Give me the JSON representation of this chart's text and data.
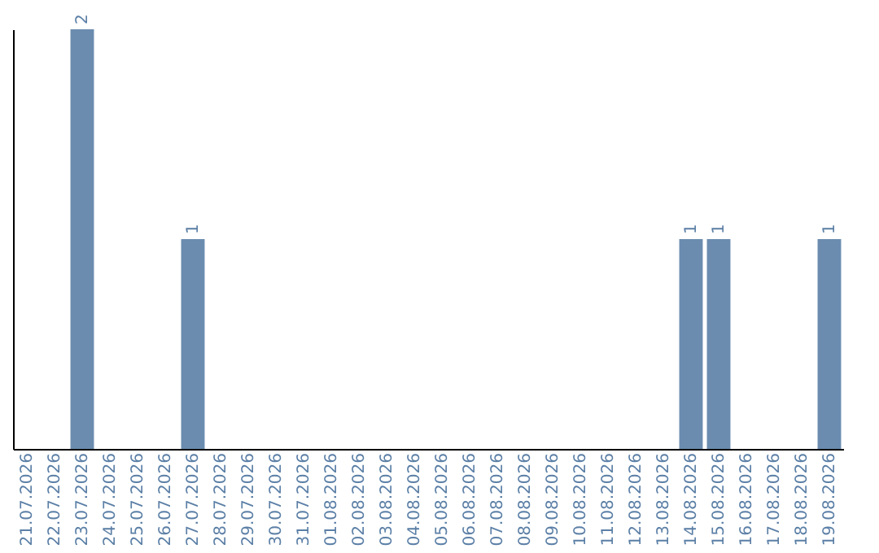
{
  "chart_data": {
    "type": "bar",
    "categories": [
      "21.07.2026",
      "22.07.2026",
      "23.07.2026",
      "24.07.2026",
      "25.07.2026",
      "26.07.2026",
      "27.07.2026",
      "28.07.2026",
      "29.07.2026",
      "30.07.2026",
      "31.07.2026",
      "01.08.2026",
      "02.08.2026",
      "03.08.2026",
      "04.08.2026",
      "05.08.2026",
      "06.08.2026",
      "07.08.2026",
      "08.08.2026",
      "09.08.2026",
      "10.08.2026",
      "11.08.2026",
      "12.08.2026",
      "13.08.2026",
      "14.08.2026",
      "15.08.2026",
      "16.08.2026",
      "17.08.2026",
      "18.08.2026",
      "19.08.2026"
    ],
    "values": [
      0,
      0,
      2,
      0,
      0,
      0,
      1,
      0,
      0,
      0,
      0,
      0,
      0,
      0,
      0,
      0,
      0,
      0,
      0,
      0,
      0,
      0,
      0,
      0,
      1,
      1,
      0,
      0,
      0,
      1
    ],
    "value_labels": [
      null,
      null,
      "2",
      null,
      null,
      null,
      "1",
      null,
      null,
      null,
      null,
      null,
      null,
      null,
      null,
      null,
      null,
      null,
      null,
      null,
      null,
      null,
      null,
      null,
      "1",
      "1",
      null,
      null,
      null,
      "1"
    ],
    "color": "#6b8caf",
    "tick_labels": "x",
    "grid": false
  }
}
